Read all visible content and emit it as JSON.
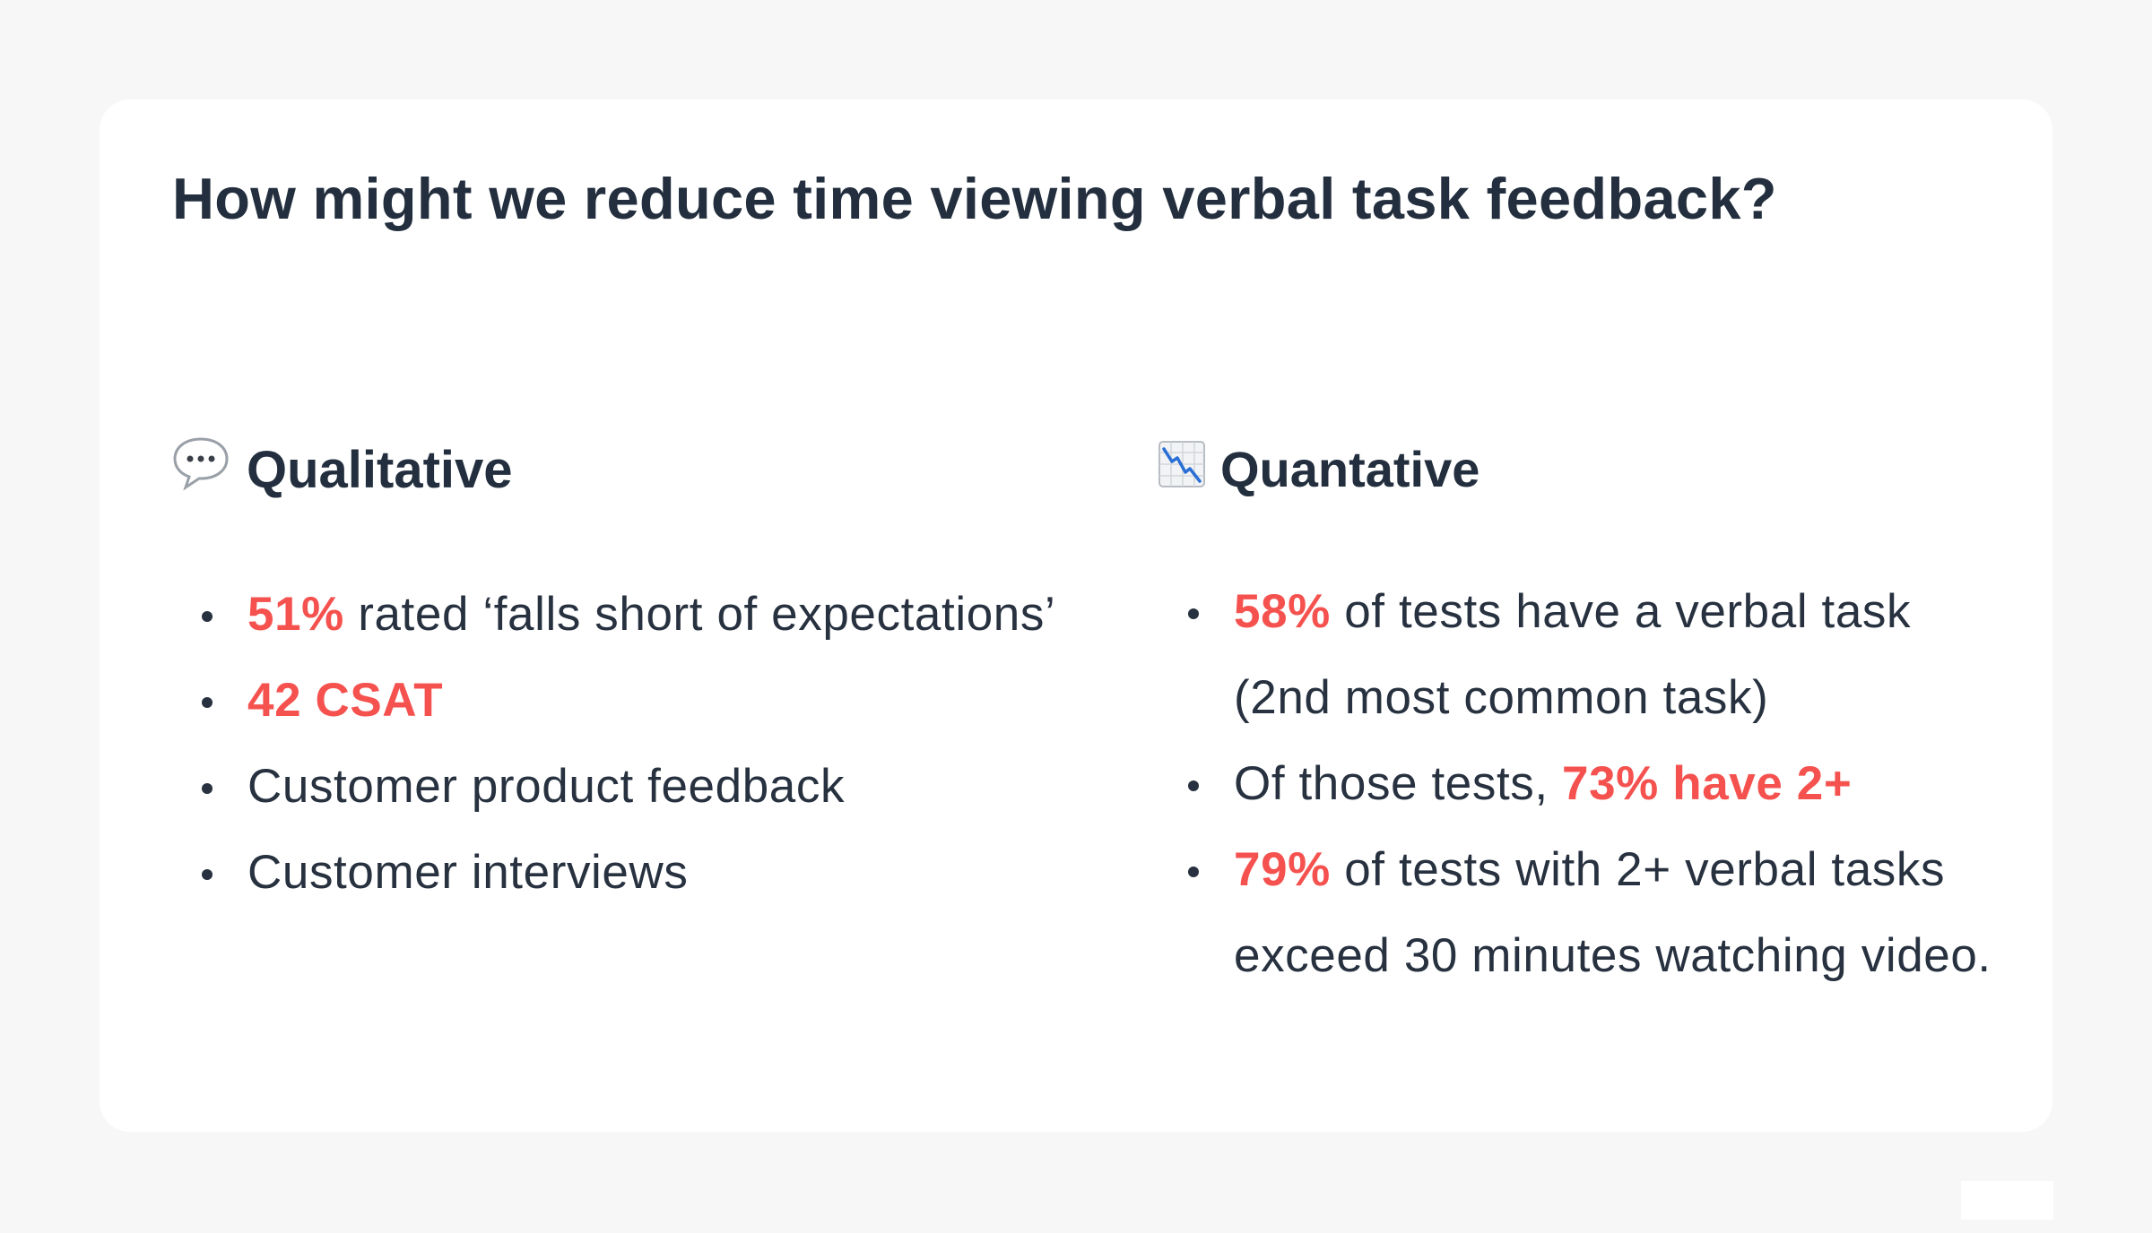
{
  "title": "How might we reduce time viewing verbal task feedback?",
  "colors": {
    "highlight": "#f5524f",
    "text": "#232f3e",
    "card": "#ffffff",
    "page": "#f7f7f7"
  },
  "qualitative": {
    "icon": "speech-balloon-icon",
    "heading": "Qualitative",
    "items": [
      {
        "highlight": "51%",
        "text": " rated ‘falls short of expectations’"
      },
      {
        "highlight": "42 CSAT",
        "text": ""
      },
      {
        "highlight": "",
        "text": "Customer product feedback"
      },
      {
        "highlight": "",
        "text": "Customer interviews"
      }
    ]
  },
  "quantitative": {
    "icon": "chart-decreasing-icon",
    "heading": "Quantative",
    "items": [
      {
        "pre": "",
        "highlight": "58%",
        "text": " of tests have a verbal task (2nd most common task)"
      },
      {
        "pre": "Of those tests, ",
        "highlight": "73% have 2+",
        "text": ""
      },
      {
        "pre": "",
        "highlight": "79%",
        "text": " of tests with 2+ verbal tasks exceed 30 minutes watching video."
      }
    ]
  }
}
